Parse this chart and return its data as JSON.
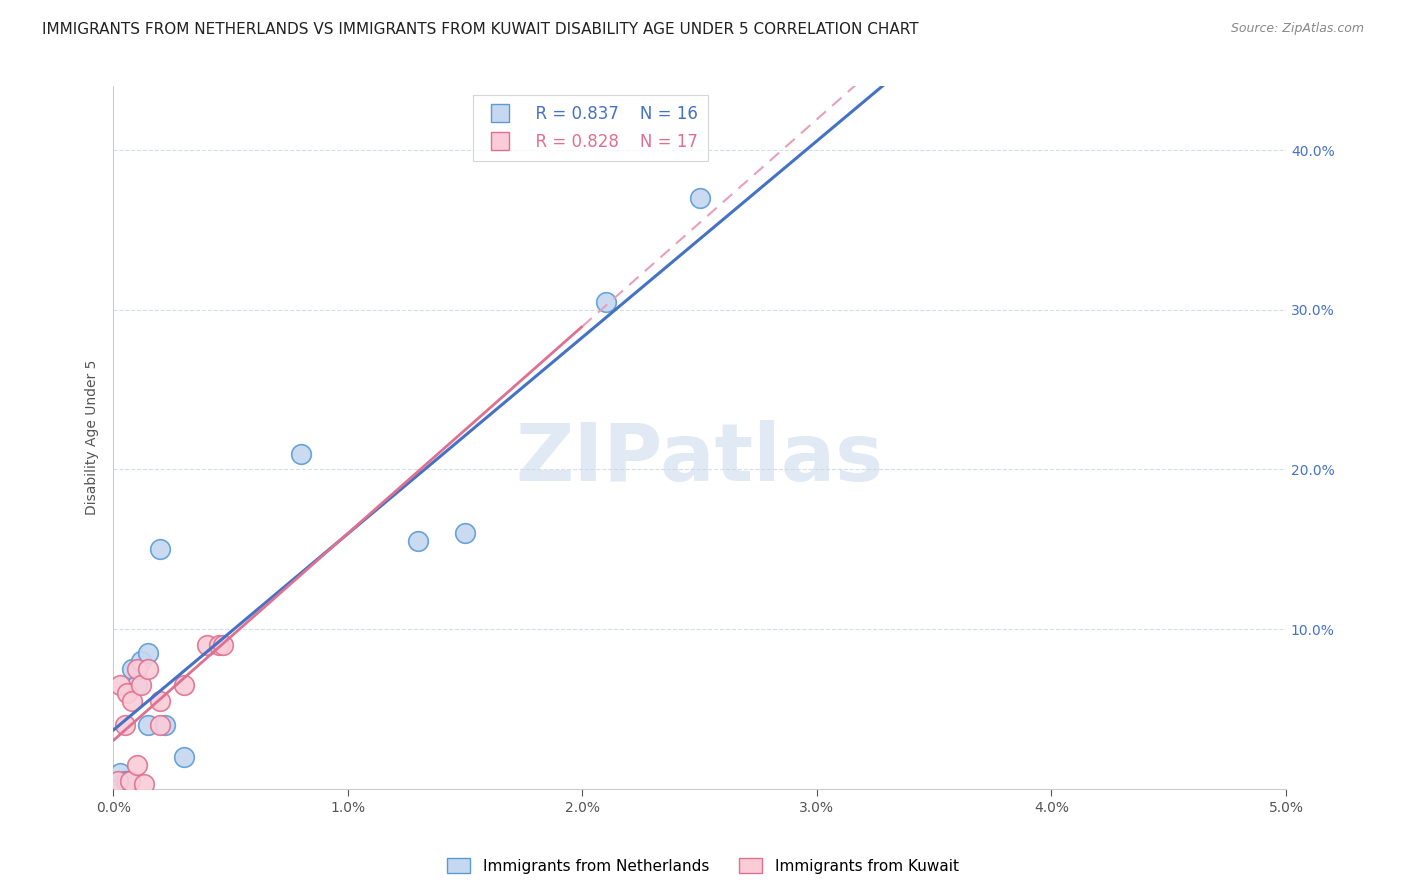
{
  "title": "IMMIGRANTS FROM NETHERLANDS VS IMMIGRANTS FROM KUWAIT DISABILITY AGE UNDER 5 CORRELATION CHART",
  "source": "Source: ZipAtlas.com",
  "ylabel": "Disability Age Under 5",
  "xlim": [
    0.0,
    0.05
  ],
  "ylim": [
    0.0,
    0.44
  ],
  "xticks": [
    0.0,
    0.01,
    0.02,
    0.03,
    0.04,
    0.05
  ],
  "yticks": [
    0.1,
    0.2,
    0.3,
    0.4
  ],
  "netherlands_x": [
    0.0003,
    0.0005,
    0.0006,
    0.0008,
    0.001,
    0.0012,
    0.0015,
    0.0015,
    0.002,
    0.0022,
    0.003,
    0.008,
    0.013,
    0.015,
    0.021,
    0.025
  ],
  "netherlands_y": [
    0.01,
    0.005,
    0.005,
    0.075,
    0.065,
    0.08,
    0.085,
    0.04,
    0.15,
    0.04,
    0.02,
    0.21,
    0.155,
    0.16,
    0.305,
    0.37
  ],
  "kuwait_x": [
    0.0002,
    0.0003,
    0.0005,
    0.0006,
    0.0007,
    0.0008,
    0.001,
    0.001,
    0.0012,
    0.0013,
    0.0015,
    0.002,
    0.002,
    0.003,
    0.004,
    0.0045,
    0.0047
  ],
  "kuwait_y": [
    0.005,
    0.065,
    0.04,
    0.06,
    0.005,
    0.055,
    0.015,
    0.075,
    0.065,
    0.003,
    0.075,
    0.055,
    0.04,
    0.065,
    0.09,
    0.09,
    0.09
  ],
  "netherlands_color": "#c5d8f0",
  "netherlands_edge_color": "#5b9bd5",
  "kuwait_color": "#f9ccd8",
  "kuwait_edge_color": "#e07090",
  "netherlands_line_color": "#4472c4",
  "kuwait_line_color": "#e8a0b8",
  "kuwait_solid_line_color": "#e07090",
  "R_netherlands": 0.837,
  "N_netherlands": 16,
  "R_kuwait": 0.828,
  "N_kuwait": 17,
  "title_fontsize": 11,
  "source_fontsize": 9,
  "axis_label_fontsize": 10,
  "tick_fontsize": 10,
  "watermark": "ZIPatlas",
  "watermark_color": "#c8d8ec",
  "background_color": "#ffffff"
}
